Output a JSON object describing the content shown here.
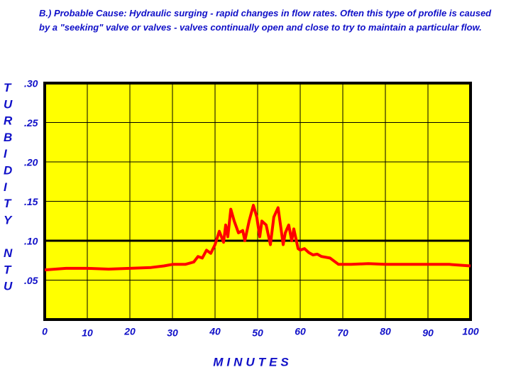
{
  "chart_data": {
    "type": "line",
    "title": "B.) Probable Cause:  Hydraulic surging - rapid changes in flow rates.  Often this type of profile is caused",
    "subtitle": "by a \"seeking\" valve or valves - valves continually open and close to try to maintain a particular flow.",
    "y_label": "TURBIDITY",
    "y_unit": "NTU",
    "x_label": "MINUTES",
    "xlim": [
      0,
      100
    ],
    "xticks": [
      0,
      10,
      20,
      30,
      40,
      50,
      60,
      70,
      80,
      90,
      100
    ],
    "ylim": [
      0,
      0.3
    ],
    "yticks": [
      {
        "value": 0.05,
        "label": ".05"
      },
      {
        "value": 0.1,
        "label": ".10"
      },
      {
        "value": 0.15,
        "label": ".15"
      },
      {
        "value": 0.2,
        "label": ".20"
      },
      {
        "value": 0.25,
        "label": ".25"
      },
      {
        "value": 0.3,
        "label": ".30"
      }
    ],
    "grid": true,
    "background": "#ffff00",
    "series": [
      {
        "color": "#ff0000",
        "x": [
          0,
          5,
          10,
          15,
          20,
          25,
          28,
          30,
          33,
          35,
          36,
          37,
          38,
          39,
          40,
          41,
          42,
          42.5,
          43,
          43.7,
          44.5,
          45.5,
          46.5,
          47,
          48,
          49,
          49.8,
          50.5,
          51,
          52,
          53,
          53.8,
          54.8,
          55.5,
          56,
          56.5,
          57.3,
          58,
          58.5,
          59.5,
          60,
          61,
          62,
          63,
          64,
          65,
          67,
          69,
          72,
          76,
          80,
          85,
          90,
          95,
          100
        ],
        "values": [
          0.063,
          0.065,
          0.065,
          0.064,
          0.065,
          0.066,
          0.068,
          0.07,
          0.07,
          0.073,
          0.08,
          0.078,
          0.088,
          0.084,
          0.095,
          0.112,
          0.098,
          0.12,
          0.105,
          0.14,
          0.125,
          0.11,
          0.113,
          0.1,
          0.125,
          0.145,
          0.13,
          0.105,
          0.125,
          0.12,
          0.095,
          0.13,
          0.142,
          0.115,
          0.095,
          0.11,
          0.12,
          0.1,
          0.115,
          0.09,
          0.088,
          0.09,
          0.085,
          0.082,
          0.083,
          0.08,
          0.078,
          0.07,
          0.07,
          0.071,
          0.07,
          0.07,
          0.07,
          0.07,
          0.068
        ]
      }
    ]
  }
}
